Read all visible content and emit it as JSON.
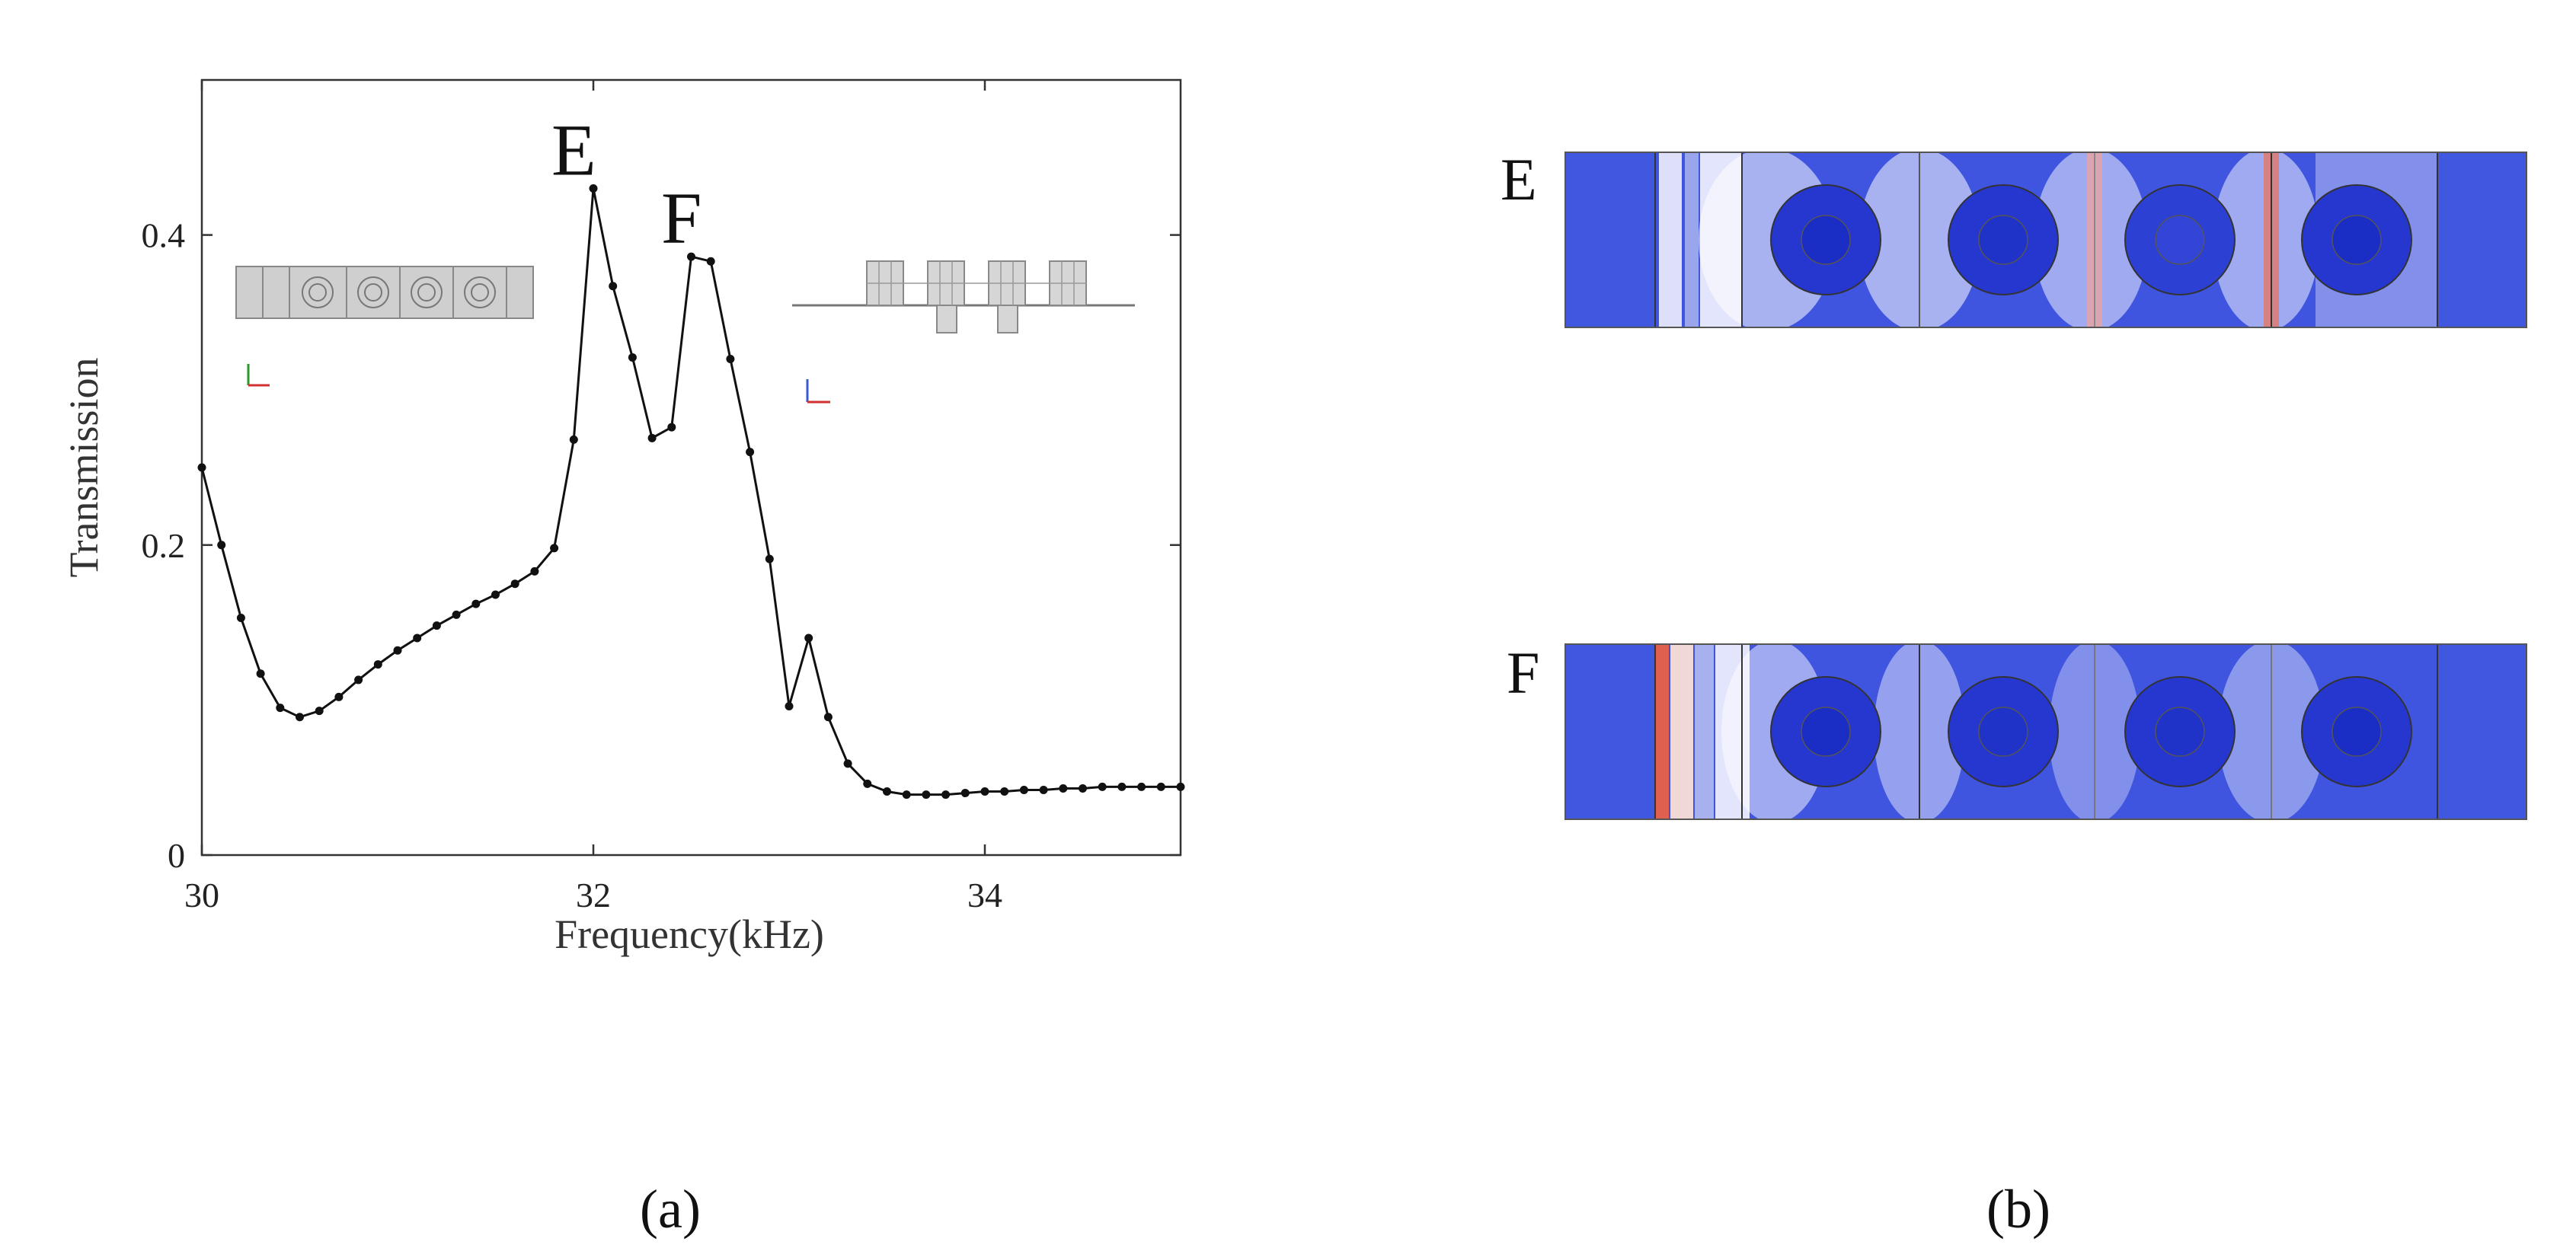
{
  "chart_data": {
    "type": "line",
    "xlabel": "Frequency(kHz)",
    "ylabel": "Transmission",
    "xlim": [
      30,
      35
    ],
    "ylim": [
      0,
      0.5
    ],
    "x_ticks": [
      "30",
      "32",
      "34"
    ],
    "y_ticks": [
      "0",
      "0.2",
      "0.4"
    ],
    "grid": false,
    "series": [
      {
        "x": [
          30.0,
          30.1,
          30.2,
          30.3,
          30.4,
          30.5,
          30.6,
          30.7,
          30.8,
          30.9,
          31.0,
          31.1,
          31.2,
          31.3,
          31.4,
          31.5,
          31.6,
          31.7,
          31.8,
          31.9,
          32.0,
          32.1,
          32.2,
          32.3,
          32.4,
          32.5,
          32.6,
          32.7,
          32.8,
          32.9,
          33.0,
          33.1,
          33.2,
          33.3,
          33.4,
          33.5,
          33.6,
          33.7,
          33.8,
          33.9,
          34.0,
          34.1,
          34.2,
          34.3,
          34.4,
          34.5,
          34.6,
          34.7,
          34.8,
          34.9,
          35.0
        ],
        "values": [
          0.25,
          0.2,
          0.153,
          0.117,
          0.095,
          0.089,
          0.093,
          0.102,
          0.113,
          0.123,
          0.132,
          0.14,
          0.148,
          0.155,
          0.162,
          0.168,
          0.175,
          0.183,
          0.198,
          0.268,
          0.43,
          0.367,
          0.321,
          0.269,
          0.276,
          0.386,
          0.383,
          0.32,
          0.26,
          0.191,
          0.096,
          0.14,
          0.089,
          0.059,
          0.046,
          0.041,
          0.039,
          0.039,
          0.039,
          0.04,
          0.041,
          0.041,
          0.042,
          0.042,
          0.043,
          0.043,
          0.044,
          0.044,
          0.044,
          0.044,
          0.044
        ]
      }
    ],
    "annotations": [
      {
        "text": "E",
        "x": 31.9,
        "y": 0.43
      },
      {
        "text": "F",
        "x": 32.45,
        "y": 0.386
      }
    ]
  },
  "panels": {
    "a_label": "(a)",
    "b_label": "(b)"
  },
  "field_maps": [
    {
      "label": "E"
    },
    {
      "label": "F"
    }
  ],
  "colors": {
    "field_blue": "#3f55e0",
    "field_dark_blue": "#1a2fd0",
    "field_red": "#e05545",
    "line": "#111111"
  }
}
